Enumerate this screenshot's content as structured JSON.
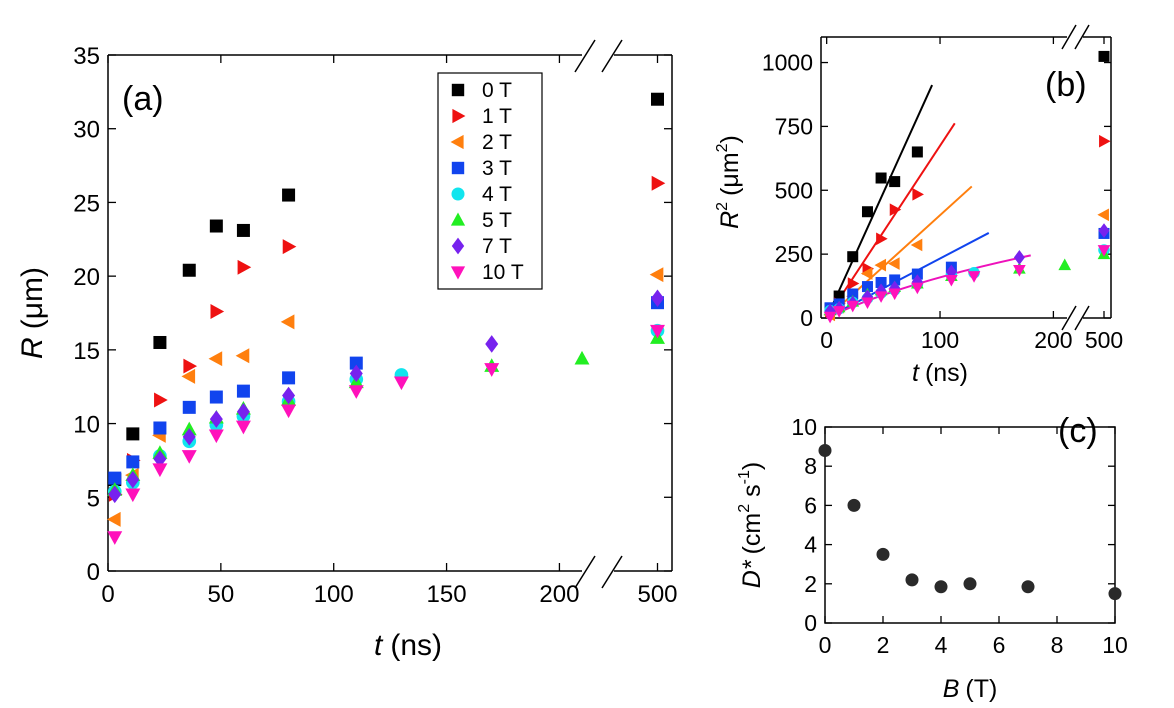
{
  "chart_data": [
    {
      "id": "a",
      "type": "scatter",
      "panel_label": "(a)",
      "xlabel_sym": "t",
      "xlabel_unit": "(ns)",
      "ylabel_sym": "R",
      "ylabel_unit": "(μm)",
      "x_ticks": [
        "0",
        "50",
        "100",
        "150",
        "200",
        "500"
      ],
      "y_ticks": [
        "0",
        "5",
        "10",
        "15",
        "20",
        "25",
        "30",
        "35"
      ],
      "xlim": [
        0,
        210
      ],
      "x_break": [
        215,
        485
      ],
      "xlim_after_break": [
        485,
        505
      ],
      "ylim": [
        0,
        35
      ],
      "legend_position": "top-right",
      "series": [
        {
          "name": "0 T",
          "marker": "square",
          "color": "#000000",
          "x": [
            3,
            11,
            23,
            36,
            48,
            60,
            80,
            500
          ],
          "y": [
            6.2,
            9.3,
            15.5,
            20.4,
            23.4,
            23.1,
            25.5,
            32.0
          ]
        },
        {
          "name": "1 T",
          "marker": "triangle-right",
          "color": "#ee1111",
          "x": [
            3,
            11,
            23,
            36,
            48,
            60,
            80,
            500
          ],
          "y": [
            5.2,
            7.5,
            11.6,
            13.9,
            17.6,
            20.6,
            22.0,
            26.3
          ]
        },
        {
          "name": "2 T",
          "marker": "triangle-left",
          "color": "#ff7f0e",
          "x": [
            3,
            11,
            23,
            36,
            48,
            60,
            80,
            500
          ],
          "y": [
            3.5,
            6.5,
            9.2,
            13.2,
            14.4,
            14.6,
            16.9,
            20.1
          ]
        },
        {
          "name": "3 T",
          "marker": "square",
          "color": "#1144ee",
          "x": [
            3,
            11,
            23,
            36,
            48,
            60,
            80,
            110,
            500
          ],
          "y": [
            6.3,
            7.4,
            9.7,
            11.1,
            11.8,
            12.2,
            13.1,
            14.1,
            18.2
          ]
        },
        {
          "name": "4 T",
          "marker": "circle",
          "color": "#11e5ee",
          "x": [
            3,
            11,
            23,
            36,
            48,
            60,
            80,
            110,
            130,
            500
          ],
          "y": [
            5.4,
            6.0,
            7.8,
            8.8,
            9.9,
            10.5,
            11.5,
            13.0,
            13.3,
            16.3
          ]
        },
        {
          "name": "5 T",
          "marker": "triangle-up",
          "color": "#22ee22",
          "x": [
            3,
            11,
            23,
            36,
            48,
            60,
            80,
            110,
            170,
            210,
            500
          ],
          "y": [
            5.5,
            6.5,
            8.0,
            9.6,
            10.4,
            11.0,
            11.6,
            12.8,
            13.9,
            14.4,
            15.8
          ]
        },
        {
          "name": "7 T",
          "marker": "diamond",
          "color": "#7722ee",
          "x": [
            3,
            11,
            23,
            36,
            48,
            60,
            80,
            110,
            170,
            500
          ],
          "y": [
            5.2,
            6.2,
            7.6,
            9.1,
            10.3,
            10.8,
            11.9,
            13.4,
            15.4,
            18.5
          ]
        },
        {
          "name": "10 T",
          "marker": "triangle-down",
          "color": "#ff11bb",
          "x": [
            3,
            11,
            23,
            36,
            48,
            60,
            80,
            110,
            130,
            170,
            500
          ],
          "y": [
            2.3,
            5.2,
            6.9,
            7.8,
            9.2,
            9.8,
            10.9,
            12.2,
            12.8,
            13.7,
            16.3
          ]
        }
      ]
    },
    {
      "id": "b",
      "type": "scatter",
      "panel_label": "(b)",
      "xlabel_sym": "t",
      "xlabel_unit": "(ns)",
      "ylabel_sym": "R",
      "ylabel_sup": "2",
      "ylabel_unit_open": "(μm",
      "ylabel_unit_sup": "2",
      "ylabel_unit_close": ")",
      "x_ticks": [
        "0",
        "100",
        "200",
        "500"
      ],
      "y_ticks": [
        "0",
        "250",
        "500",
        "750",
        "1000"
      ],
      "xlim": [
        -5,
        212
      ],
      "x_break": [
        215,
        485
      ],
      "xlim_after_break": [
        485,
        505
      ],
      "ylim": [
        0,
        1100
      ],
      "series": [
        {
          "name": "0 T",
          "marker": "square",
          "color": "#000000",
          "x": [
            3,
            11,
            23,
            36,
            48,
            60,
            80,
            500
          ],
          "y": [
            38,
            86,
            240,
            416,
            548,
            534,
            650,
            1024
          ]
        },
        {
          "name": "1 T",
          "marker": "triangle-right",
          "color": "#ee1111",
          "x": [
            3,
            11,
            23,
            36,
            48,
            60,
            80,
            500
          ],
          "y": [
            27,
            56,
            135,
            193,
            310,
            424,
            484,
            692
          ]
        },
        {
          "name": "2 T",
          "marker": "triangle-left",
          "color": "#ff7f0e",
          "x": [
            3,
            11,
            23,
            36,
            48,
            60,
            80,
            500
          ],
          "y": [
            12,
            42,
            85,
            174,
            207,
            213,
            286,
            404
          ]
        },
        {
          "name": "3 T",
          "marker": "square",
          "color": "#1144ee",
          "x": [
            3,
            11,
            23,
            36,
            48,
            60,
            80,
            110,
            500
          ],
          "y": [
            40,
            55,
            94,
            123,
            139,
            149,
            172,
            199,
            331
          ]
        },
        {
          "name": "4 T",
          "marker": "circle",
          "color": "#11e5ee",
          "x": [
            3,
            11,
            23,
            36,
            48,
            60,
            80,
            110,
            130,
            500
          ],
          "y": [
            29,
            36,
            61,
            77,
            98,
            110,
            132,
            169,
            177,
            266
          ]
        },
        {
          "name": "5 T",
          "marker": "triangle-up",
          "color": "#22ee22",
          "x": [
            3,
            11,
            23,
            36,
            48,
            60,
            80,
            110,
            170,
            210,
            500
          ],
          "y": [
            30,
            42,
            64,
            92,
            108,
            121,
            135,
            164,
            193,
            207,
            250
          ]
        },
        {
          "name": "7 T",
          "marker": "diamond",
          "color": "#7722ee",
          "x": [
            3,
            11,
            23,
            36,
            48,
            60,
            80,
            110,
            170,
            500
          ],
          "y": [
            27,
            38,
            58,
            83,
            106,
            117,
            142,
            180,
            237,
            342
          ]
        },
        {
          "name": "10 T",
          "marker": "triangle-down",
          "color": "#ff11bb",
          "x": [
            3,
            11,
            23,
            36,
            48,
            60,
            80,
            110,
            130,
            170,
            500
          ],
          "y": [
            5,
            27,
            48,
            61,
            85,
            96,
            119,
            149,
            164,
            188,
            266
          ]
        }
      ],
      "fit_lines": [
        {
          "color": "#000000",
          "x": [
            0,
            93
          ],
          "y": [
            0,
            912
          ]
        },
        {
          "color": "#ee1111",
          "x": [
            0,
            113
          ],
          "y": [
            0,
            762
          ]
        },
        {
          "color": "#ff7f0e",
          "x": [
            0,
            128
          ],
          "y": [
            0,
            515
          ]
        },
        {
          "color": "#1144ee",
          "x": [
            0,
            143
          ],
          "y": [
            0,
            333
          ]
        },
        {
          "color": "#ee11bb",
          "x": [
            0,
            180
          ],
          "y": [
            0,
            245
          ],
          "curve": true
        }
      ]
    },
    {
      "id": "c",
      "type": "scatter",
      "panel_label": "(c)",
      "xlabel_sym": "B",
      "xlabel_unit": "(T)",
      "ylabel_sym": "D*",
      "ylabel_unit_open": "(cm",
      "ylabel_unit_sup1": "2",
      "ylabel_unit_mid": " s",
      "ylabel_unit_sup2": "-1",
      "ylabel_unit_close": ")",
      "x_ticks": [
        "0",
        "2",
        "4",
        "6",
        "8",
        "10"
      ],
      "y_ticks": [
        "0",
        "2",
        "4",
        "6",
        "8",
        "10"
      ],
      "xlim": [
        0,
        10
      ],
      "ylim": [
        0,
        10
      ],
      "series": [
        {
          "name": "",
          "marker": "circle",
          "color": "#2a2a2a",
          "x": [
            0,
            1,
            2,
            3,
            4,
            5,
            7,
            10
          ],
          "y": [
            8.8,
            6.0,
            3.5,
            2.2,
            1.85,
            2.0,
            1.85,
            1.5
          ]
        }
      ]
    }
  ]
}
